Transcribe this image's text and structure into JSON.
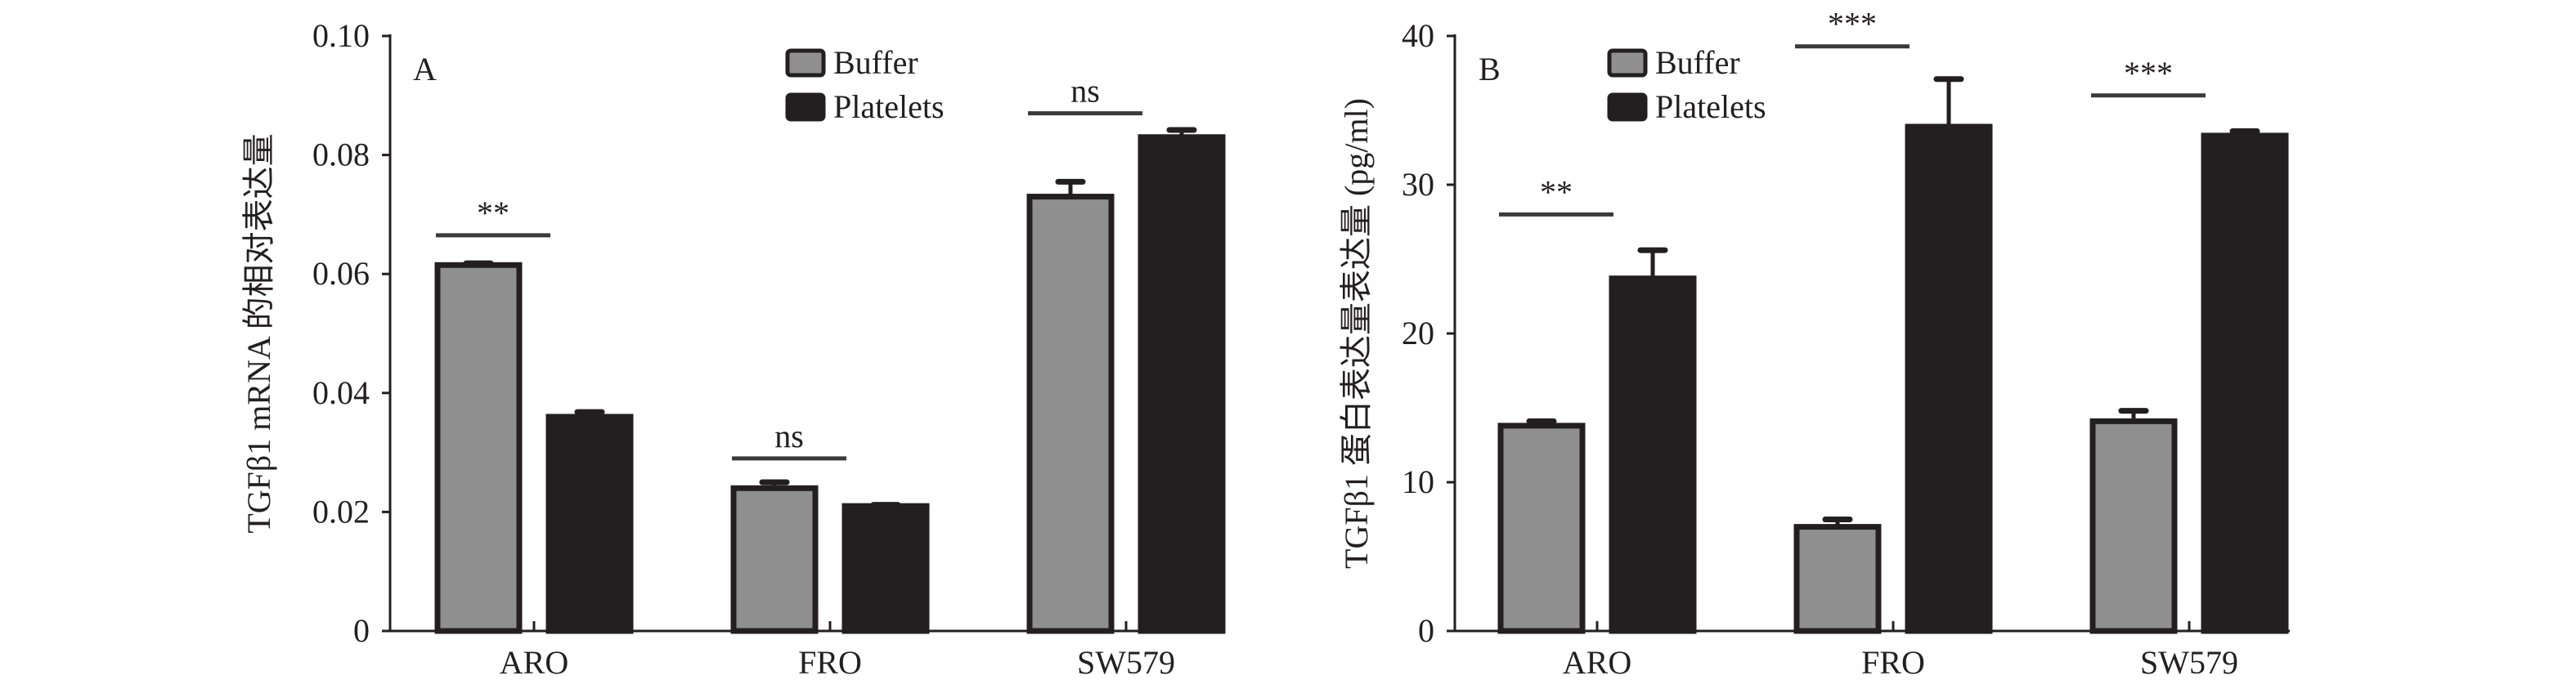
{
  "chart_data": [
    {
      "type": "bar",
      "panel_label": "A",
      "ylabel": "TGFβ1 mRNA 的相对表达量",
      "xlabel": "",
      "categories": [
        "ARO",
        "FRO",
        "SW579"
      ],
      "ylim": [
        0,
        0.1
      ],
      "yticks": [
        0,
        0.02,
        0.04,
        0.06,
        0.08,
        0.1
      ],
      "ytick_labels": [
        "0",
        "0.02",
        "0.04",
        "0.06",
        "0.08",
        "0.10"
      ],
      "legend": [
        "Buffer",
        "Platelets"
      ],
      "legend_position": "top-center",
      "series": [
        {
          "name": "Buffer",
          "values": [
            0.0615,
            0.024,
            0.073
          ],
          "errors": [
            0.0003,
            0.001,
            0.0025
          ]
        },
        {
          "name": "Platelets",
          "values": [
            0.036,
            0.021,
            0.083
          ],
          "errors": [
            0.0008,
            0.0002,
            0.0012
          ]
        }
      ],
      "significance": [
        {
          "category": "ARO",
          "label": "**",
          "y": 0.0665
        },
        {
          "category": "FRO",
          "label": "ns",
          "y": 0.029
        },
        {
          "category": "SW579",
          "label": "ns",
          "y": 0.087
        }
      ]
    },
    {
      "type": "bar",
      "panel_label": "B",
      "ylabel": "TGFβ1 蛋白表达量表达量 (pg/ml)",
      "xlabel": "",
      "categories": [
        "ARO",
        "FRO",
        "SW579"
      ],
      "ylim": [
        0,
        40
      ],
      "yticks": [
        0,
        10,
        20,
        30,
        40
      ],
      "ytick_labels": [
        "0",
        "10",
        "20",
        "30",
        "40"
      ],
      "legend": [
        "Buffer",
        "Platelets"
      ],
      "legend_position": "top-left",
      "series": [
        {
          "name": "Buffer",
          "values": [
            13.8,
            7.0,
            14.1
          ],
          "errors": [
            0.3,
            0.5,
            0.7
          ]
        },
        {
          "name": "Platelets",
          "values": [
            23.7,
            33.9,
            33.3
          ],
          "errors": [
            1.9,
            3.2,
            0.3
          ]
        }
      ],
      "significance": [
        {
          "category": "ARO",
          "label": "**",
          "y": 28
        },
        {
          "category": "FRO",
          "label": "***",
          "y": 39.3
        },
        {
          "category": "SW579",
          "label": "***",
          "y": 36
        }
      ]
    }
  ],
  "colors": {
    "buffer": "#8f8f8f",
    "platelets": "#231f20",
    "axis": "#231f20"
  }
}
